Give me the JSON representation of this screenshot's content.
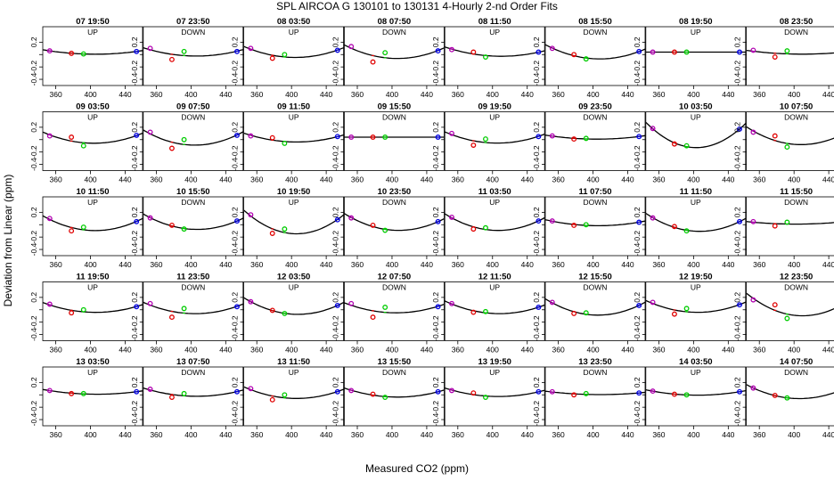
{
  "page_title": "SPL    AIRCOA G   130101 to 130131   4-Hourly 2-nd Order Fits",
  "xlabel": "Measured CO2 (ppm)",
  "ylabel": "Deviation from Linear (ppm)",
  "x_ticks": [
    "360",
    "400",
    "440"
  ],
  "y_ticks": [
    "0.2",
    "0",
    "-0.2",
    "-0.4"
  ],
  "colors": {
    "p1": "#b000b0",
    "p2": "#e00000",
    "p3": "#00cc00",
    "p4": "#0000e0",
    "curve": "#000000"
  },
  "chart_data": {
    "type": "scatter",
    "title": "SPL    AIRCOA G   130101 to 130131   4-Hourly 2-nd Order Fits",
    "xlabel": "Measured CO2 (ppm)",
    "ylabel": "Deviation from Linear (ppm)",
    "xlim": [
      345,
      460
    ],
    "ylim": [
      -0.5,
      0.45
    ],
    "panels": [
      {
        "title": "07 19:50",
        "dir": "UP",
        "x": [
          353,
          378,
          392,
          453
        ],
        "y": [
          0.06,
          0.02,
          0.01,
          0.05
        ]
      },
      {
        "title": "07 23:50",
        "dir": "DOWN",
        "x": [
          353,
          378,
          392,
          453
        ],
        "y": [
          0.1,
          -0.08,
          0.05,
          0.05
        ]
      },
      {
        "title": "08 03:50",
        "dir": "UP",
        "x": [
          353,
          378,
          392,
          453
        ],
        "y": [
          0.1,
          -0.06,
          0.0,
          0.07
        ]
      },
      {
        "title": "08 07:50",
        "dir": "DOWN",
        "x": [
          353,
          378,
          392,
          453
        ],
        "y": [
          0.13,
          -0.12,
          0.03,
          0.06
        ]
      },
      {
        "title": "08 11:50",
        "dir": "UP",
        "x": [
          353,
          378,
          392,
          453
        ],
        "y": [
          0.08,
          0.04,
          -0.04,
          0.04
        ]
      },
      {
        "title": "08 15:50",
        "dir": "DOWN",
        "x": [
          353,
          378,
          392,
          453
        ],
        "y": [
          0.1,
          0.0,
          -0.07,
          0.05
        ]
      },
      {
        "title": "08 19:50",
        "dir": "UP",
        "x": [
          353,
          378,
          392,
          453
        ],
        "y": [
          0.04,
          0.04,
          0.04,
          0.04
        ]
      },
      {
        "title": "08 23:50",
        "dir": "DOWN",
        "x": [
          353,
          378,
          392,
          453
        ],
        "y": [
          0.07,
          -0.04,
          0.06,
          0.03
        ]
      },
      {
        "title": "09 03:50",
        "dir": "UP",
        "x": [
          353,
          378,
          392,
          453
        ],
        "y": [
          0.06,
          0.04,
          -0.1,
          0.07
        ]
      },
      {
        "title": "09 07:50",
        "dir": "DOWN",
        "x": [
          353,
          378,
          392,
          453
        ],
        "y": [
          0.12,
          -0.14,
          0.0,
          0.07
        ]
      },
      {
        "title": "09 11:50",
        "dir": "UP",
        "x": [
          353,
          378,
          392,
          453
        ],
        "y": [
          0.06,
          0.03,
          -0.06,
          0.05
        ]
      },
      {
        "title": "09 15:50",
        "dir": "DOWN",
        "x": [
          353,
          378,
          392,
          453
        ],
        "y": [
          0.04,
          0.04,
          0.04,
          0.04
        ]
      },
      {
        "title": "09 19:50",
        "dir": "UP",
        "x": [
          353,
          378,
          392,
          453
        ],
        "y": [
          0.1,
          -0.09,
          0.01,
          0.05
        ]
      },
      {
        "title": "09 23:50",
        "dir": "DOWN",
        "x": [
          353,
          378,
          392,
          453
        ],
        "y": [
          0.06,
          0.01,
          0.02,
          0.05
        ]
      },
      {
        "title": "10 03:50",
        "dir": "UP",
        "x": [
          353,
          378,
          392,
          453
        ],
        "y": [
          0.18,
          -0.07,
          -0.1,
          0.17
        ]
      },
      {
        "title": "10 07:50",
        "dir": "DOWN",
        "x": [
          353,
          378,
          392,
          453
        ],
        "y": [
          0.12,
          0.06,
          -0.12,
          0.07
        ]
      },
      {
        "title": "10 11:50",
        "dir": "UP",
        "x": [
          353,
          378,
          392,
          453
        ],
        "y": [
          0.1,
          -0.1,
          -0.04,
          0.05
        ]
      },
      {
        "title": "10 15:50",
        "dir": "DOWN",
        "x": [
          353,
          378,
          392,
          453
        ],
        "y": [
          0.11,
          -0.01,
          -0.07,
          0.06
        ]
      },
      {
        "title": "10 19:50",
        "dir": "UP",
        "x": [
          353,
          378,
          392,
          453
        ],
        "y": [
          0.16,
          -0.14,
          -0.07,
          0.08
        ]
      },
      {
        "title": "10 23:50",
        "dir": "DOWN",
        "x": [
          353,
          378,
          392,
          453
        ],
        "y": [
          0.11,
          -0.01,
          -0.09,
          0.05
        ]
      },
      {
        "title": "11 03:50",
        "dir": "UP",
        "x": [
          353,
          378,
          392,
          453
        ],
        "y": [
          0.12,
          -0.07,
          -0.05,
          0.06
        ]
      },
      {
        "title": "11 07:50",
        "dir": "DOWN",
        "x": [
          353,
          378,
          392,
          453
        ],
        "y": [
          0.06,
          -0.01,
          0.0,
          0.04
        ]
      },
      {
        "title": "11 11:50",
        "dir": "UP",
        "x": [
          353,
          378,
          392,
          453
        ],
        "y": [
          0.11,
          -0.03,
          -0.1,
          0.05
        ]
      },
      {
        "title": "11 15:50",
        "dir": "DOWN",
        "x": [
          353,
          378,
          392,
          453
        ],
        "y": [
          0.05,
          -0.02,
          0.04,
          0.04
        ]
      },
      {
        "title": "11 19:50",
        "dir": "UP",
        "x": [
          353,
          378,
          392,
          453
        ],
        "y": [
          0.09,
          -0.05,
          0.0,
          0.05
        ]
      },
      {
        "title": "11 23:50",
        "dir": "DOWN",
        "x": [
          353,
          378,
          392,
          453
        ],
        "y": [
          0.1,
          -0.12,
          0.02,
          0.05
        ]
      },
      {
        "title": "12 03:50",
        "dir": "UP",
        "x": [
          353,
          378,
          392,
          453
        ],
        "y": [
          0.13,
          -0.01,
          -0.06,
          0.07
        ]
      },
      {
        "title": "12 07:50",
        "dir": "DOWN",
        "x": [
          353,
          378,
          392,
          453
        ],
        "y": [
          0.1,
          -0.12,
          0.04,
          0.05
        ]
      },
      {
        "title": "12 11:50",
        "dir": "UP",
        "x": [
          353,
          378,
          392,
          453
        ],
        "y": [
          0.1,
          -0.04,
          -0.03,
          0.04
        ]
      },
      {
        "title": "12 15:50",
        "dir": "DOWN",
        "x": [
          353,
          378,
          392,
          453
        ],
        "y": [
          0.12,
          -0.06,
          -0.05,
          0.07
        ]
      },
      {
        "title": "12 19:50",
        "dir": "UP",
        "x": [
          353,
          378,
          392,
          453
        ],
        "y": [
          0.12,
          -0.07,
          0.02,
          0.08
        ]
      },
      {
        "title": "12 23:50",
        "dir": "DOWN",
        "x": [
          353,
          378,
          392,
          453
        ],
        "y": [
          0.16,
          0.08,
          -0.14,
          0.07
        ]
      },
      {
        "title": "13 03:50",
        "dir": "UP",
        "x": [
          353,
          378,
          392,
          453
        ],
        "y": [
          0.07,
          0.02,
          0.02,
          0.05
        ]
      },
      {
        "title": "13 07:50",
        "dir": "DOWN",
        "x": [
          353,
          378,
          392,
          453
        ],
        "y": [
          0.09,
          -0.04,
          0.02,
          0.05
        ]
      },
      {
        "title": "13 11:50",
        "dir": "UP",
        "x": [
          353,
          378,
          392,
          453
        ],
        "y": [
          0.1,
          -0.08,
          0.0,
          0.05
        ]
      },
      {
        "title": "13 15:50",
        "dir": "DOWN",
        "x": [
          353,
          378,
          392,
          453
        ],
        "y": [
          0.07,
          0.01,
          -0.04,
          0.05
        ]
      },
      {
        "title": "13 19:50",
        "dir": "UP",
        "x": [
          353,
          378,
          392,
          453
        ],
        "y": [
          0.07,
          0.03,
          -0.04,
          0.05
        ]
      },
      {
        "title": "13 23:50",
        "dir": "DOWN",
        "x": [
          353,
          378,
          392,
          453
        ],
        "y": [
          0.05,
          0.0,
          0.02,
          0.03
        ]
      },
      {
        "title": "14 03:50",
        "dir": "UP",
        "x": [
          353,
          378,
          392,
          453
        ],
        "y": [
          0.06,
          0.01,
          0.0,
          0.05
        ]
      },
      {
        "title": "14 07:50",
        "dir": "DOWN",
        "x": [
          353,
          378,
          392,
          453
        ],
        "y": [
          0.11,
          -0.01,
          -0.05,
          0.07
        ]
      }
    ]
  }
}
